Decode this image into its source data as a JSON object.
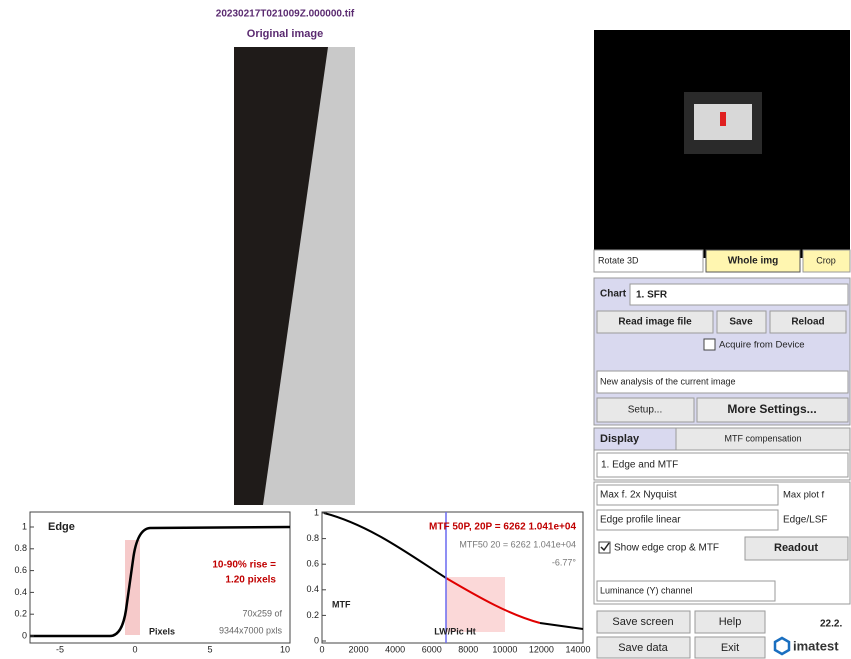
{
  "header": {
    "filename": "20230217T021009Z.000000.tif",
    "title": "Original image"
  },
  "edge_plot": {
    "title": "Edge",
    "rise_label": "10-90% rise =",
    "rise_value": "1.20 pixels",
    "crop_size": "70x259 of",
    "image_size": "9344x7000 pxls",
    "x_label": "Pixels",
    "yticks": [
      "1",
      "0.8",
      "0.6",
      "0.4",
      "0.2",
      "0"
    ],
    "xticks": [
      "-5",
      "0",
      "5",
      "10"
    ]
  },
  "mtf_plot": {
    "headline": "MTF 50P, 20P = 6262  1.041e+04",
    "readout": "MTF50 20 = 6262  1.041e+04",
    "angle": "-6.77°",
    "y_label": "MTF",
    "x_label": "LW/Pic Ht",
    "yticks": [
      "1",
      "0.8",
      "0.6",
      "0.4",
      "0.2",
      "0"
    ],
    "xticks": [
      "0",
      "2000",
      "4000",
      "6000",
      "8000",
      "10000",
      "12000",
      "14000"
    ]
  },
  "controls": {
    "rotate": "Rotate 3D",
    "whole_img": "Whole img",
    "crop": "Crop",
    "chart_label": "Chart",
    "chart_value": "1. SFR",
    "read_image": "Read image file",
    "save": "Save",
    "reload": "Reload",
    "acquire": "Acquire from Device",
    "analysis": "New analysis of the current image",
    "setup": "Setup...",
    "more_settings": "More Settings...",
    "display_tab": "Display",
    "mtf_tab": "MTF compensation",
    "display_value": "1. Edge and MTF",
    "max_f_label": "Max f.",
    "max_f_value": "2x Nyquist",
    "max_plot_f": "Max plot f",
    "edge_profile": "Edge profile linear",
    "edge_lsf": "Edge/LSF",
    "show_edge": "Show edge crop & MTF",
    "readout": "Readout",
    "channel": "Luminance (Y) channel",
    "save_screen": "Save screen",
    "help": "Help",
    "version": "22.2.",
    "save_data": "Save data",
    "exit": "Exit",
    "logo": "imatest"
  }
}
